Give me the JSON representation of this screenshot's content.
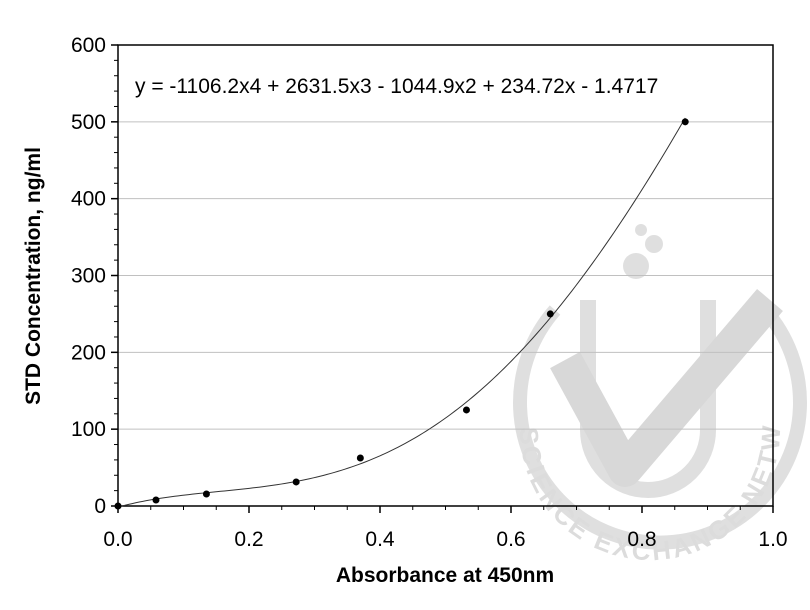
{
  "chart_data": {
    "type": "scatter",
    "title": "",
    "xlabel": "Absorbance at 450nm",
    "ylabel": "STD Concentration, ng/ml",
    "xlim": [
      0.0,
      1.0
    ],
    "ylim": [
      0,
      600
    ],
    "x_ticks": [
      "0.0",
      "0.2",
      "0.4",
      "0.6",
      "0.8",
      "1.0"
    ],
    "y_ticks": [
      "0",
      "100",
      "200",
      "300",
      "400",
      "500",
      "600"
    ],
    "grid": "horizontal",
    "legend": "none",
    "equation": "y = -1106.2x4 + 2631.5x3 - 1044.9x2 + 234.72x - 1.4717",
    "trendline": {
      "type": "polynomial",
      "coefficients": [
        -1.4717,
        234.72,
        -1044.9,
        2631.5,
        -1106.2
      ],
      "x_range": [
        0.0,
        0.866
      ]
    },
    "series": [
      {
        "x": [
          0.0,
          0.058,
          0.135,
          0.272,
          0.37,
          0.532,
          0.66,
          0.866
        ],
        "y": [
          0,
          7.8,
          15.6,
          31.3,
          62.5,
          125,
          250,
          500
        ]
      }
    ],
    "point_color": "#000000",
    "line_color": "#333333",
    "grid_color": "#c0c0c0"
  },
  "watermark": {
    "text": "THE SCIENCE EXCHANGE NETWORK",
    "color": "#d9d9d9"
  }
}
